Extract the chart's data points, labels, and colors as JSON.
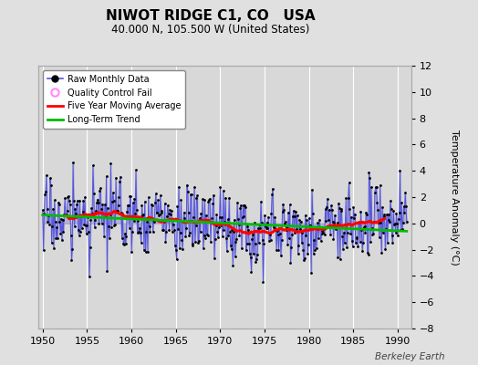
{
  "title": "NIWOT RIDGE C1, CO   USA",
  "subtitle": "40.000 N, 105.500 W (United States)",
  "ylabel": "Temperature Anomaly (°C)",
  "xlim": [
    1949.5,
    1991.5
  ],
  "ylim": [
    -8,
    12
  ],
  "yticks": [
    -8,
    -6,
    -4,
    -2,
    0,
    2,
    4,
    6,
    8,
    10,
    12
  ],
  "xticks": [
    1950,
    1955,
    1960,
    1965,
    1970,
    1975,
    1980,
    1985,
    1990
  ],
  "background_color": "#e0e0e0",
  "plot_bg_color": "#d8d8d8",
  "grid_color": "#ffffff",
  "raw_line_color": "#5555dd",
  "raw_marker_color": "#000000",
  "raw_fill_color": "#8888cc",
  "moving_avg_color": "#ff0000",
  "trend_color": "#00bb00",
  "watermark": "Berkeley Earth",
  "seed": 17,
  "title_fontsize": 11,
  "subtitle_fontsize": 8.5,
  "tick_fontsize": 8,
  "ylabel_fontsize": 8
}
